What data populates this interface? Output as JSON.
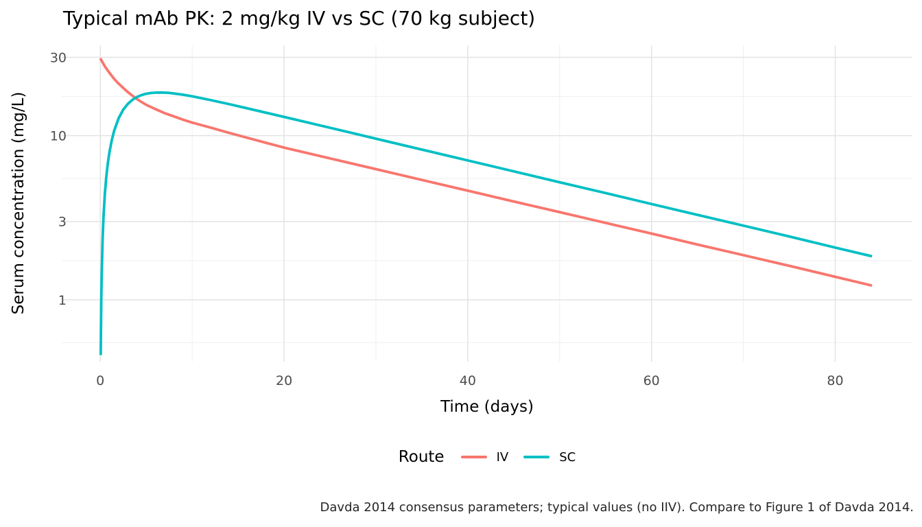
{
  "chart_data": {
    "type": "line",
    "title": "Typical mAb PK: 2 mg/kg IV vs SC (70 kg subject)",
    "xlabel": "Time (days)",
    "ylabel": "Serum concentration (mg/L)",
    "caption": "Davda 2014 consensus parameters; typical values (no IIV). Compare to Figure 1 of Davda 2014.",
    "legend": {
      "title": "Route",
      "position": "bottom",
      "entries": [
        "IV",
        "SC"
      ]
    },
    "x_axis": {
      "scale": "linear",
      "min": -4.2,
      "max": 88.4,
      "major_ticks": [
        0,
        20,
        40,
        60,
        80
      ],
      "tick_labels": [
        "0",
        "20",
        "40",
        "60",
        "80"
      ],
      "minor_ticks": [
        10,
        30,
        50,
        70
      ]
    },
    "y_axis": {
      "scale": "log10",
      "min": 0.42,
      "max": 35.5,
      "major_ticks": [
        30,
        10,
        3,
        1
      ],
      "tick_labels": [
        "30",
        "10",
        "3",
        "1"
      ],
      "minor_ticks": [
        17.321,
        5.477,
        1.732,
        0.5477
      ]
    },
    "grid": {
      "major": true,
      "minor": true
    },
    "series": [
      {
        "name": "IV",
        "color": "#F8766D",
        "points": [
          [
            0,
            29.6
          ],
          [
            0.1,
            28.9
          ],
          [
            0.25,
            27.9
          ],
          [
            0.5,
            26.4
          ],
          [
            0.75,
            25.2
          ],
          [
            1,
            24.1
          ],
          [
            1.25,
            23.1
          ],
          [
            1.5,
            22.2
          ],
          [
            1.75,
            21.4
          ],
          [
            2,
            20.7
          ],
          [
            2.5,
            19.5
          ],
          [
            3,
            18.4
          ],
          [
            3.5,
            17.5
          ],
          [
            4,
            16.7
          ],
          [
            4.5,
            16.0
          ],
          [
            5,
            15.4
          ],
          [
            6,
            14.5
          ],
          [
            7,
            13.7
          ],
          [
            8,
            13.1
          ],
          [
            9,
            12.5
          ],
          [
            10,
            12.0
          ],
          [
            12,
            11.2
          ],
          [
            14,
            10.4
          ],
          [
            16,
            9.7
          ],
          [
            18,
            9.05
          ],
          [
            20,
            8.45
          ],
          [
            25,
            7.27
          ],
          [
            30,
            6.25
          ],
          [
            35,
            5.37
          ],
          [
            40,
            4.62
          ],
          [
            45,
            3.97
          ],
          [
            50,
            3.42
          ],
          [
            55,
            2.94
          ],
          [
            60,
            2.53
          ],
          [
            65,
            2.17
          ],
          [
            70,
            1.87
          ],
          [
            75,
            1.61
          ],
          [
            80,
            1.38
          ],
          [
            84,
            1.22
          ]
        ]
      },
      {
        "name": "SC",
        "color": "#00BFC4",
        "points": [
          [
            0.04,
            0.46
          ],
          [
            0.1,
            0.98
          ],
          [
            0.15,
            1.45
          ],
          [
            0.25,
            2.36
          ],
          [
            0.35,
            3.22
          ],
          [
            0.5,
            4.45
          ],
          [
            0.65,
            5.59
          ],
          [
            0.8,
            6.7
          ],
          [
            1,
            7.94
          ],
          [
            1.25,
            9.4
          ],
          [
            1.5,
            10.67
          ],
          [
            2,
            12.77
          ],
          [
            2.5,
            14.4
          ],
          [
            3,
            15.62
          ],
          [
            3.5,
            16.53
          ],
          [
            4,
            17.21
          ],
          [
            4.5,
            17.67
          ],
          [
            5,
            18.0
          ],
          [
            5.5,
            18.19
          ],
          [
            6,
            18.28
          ],
          [
            6.5,
            18.3
          ],
          [
            7,
            18.28
          ],
          [
            7.5,
            18.2
          ],
          [
            8,
            18.07
          ],
          [
            9,
            17.75
          ],
          [
            10,
            17.35
          ],
          [
            12,
            16.47
          ],
          [
            14,
            15.56
          ],
          [
            16,
            14.66
          ],
          [
            18,
            13.81
          ],
          [
            20,
            13.0
          ],
          [
            25,
            11.16
          ],
          [
            30,
            9.58
          ],
          [
            35,
            8.22
          ],
          [
            40,
            7.06
          ],
          [
            45,
            6.06
          ],
          [
            50,
            5.2
          ],
          [
            55,
            4.47
          ],
          [
            60,
            3.83
          ],
          [
            65,
            3.29
          ],
          [
            70,
            2.83
          ],
          [
            75,
            2.43
          ],
          [
            80,
            2.08
          ],
          [
            84,
            1.84
          ]
        ]
      }
    ]
  },
  "colors": {
    "background": "#FFFFFF",
    "grid_major": "#E3E3E3",
    "grid_minor": "#EFEFEF",
    "tick_text": "#4D4D4D",
    "text": "#000000",
    "caption_text": "#262626",
    "series_iv": "#F8766D",
    "series_sc": "#00BFC4"
  }
}
